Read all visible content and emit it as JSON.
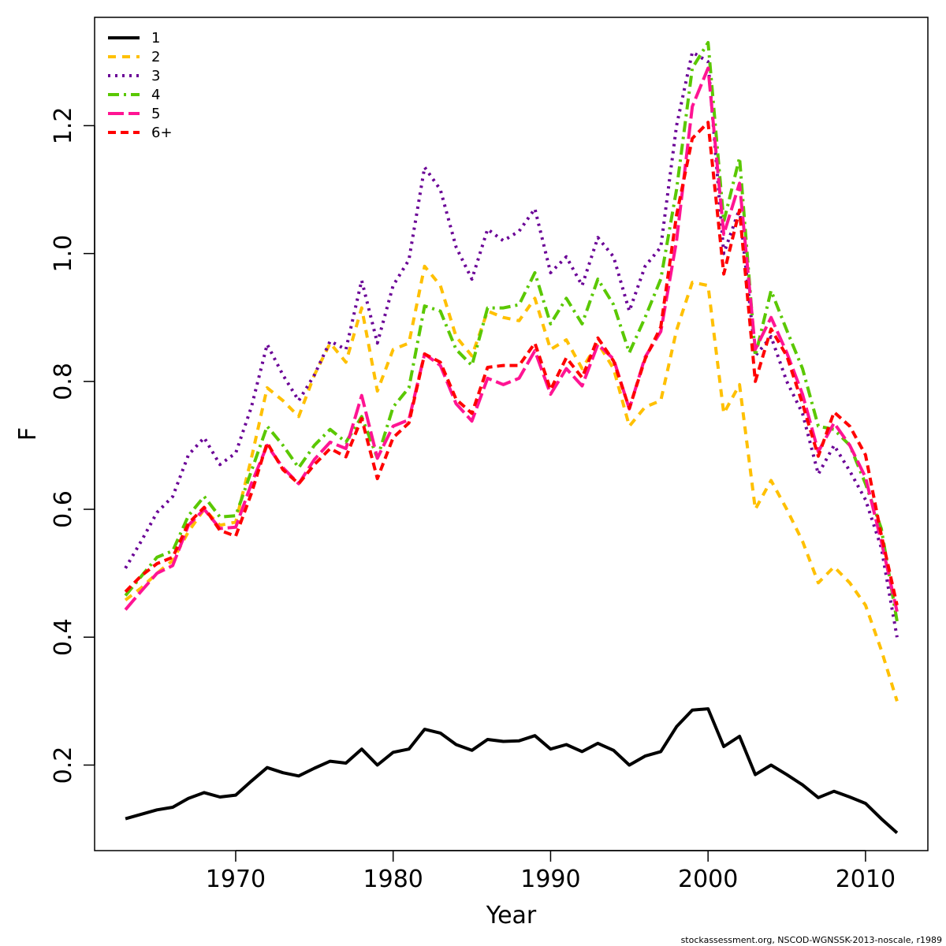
{
  "chart_data": {
    "type": "line",
    "xlabel": "Year",
    "ylabel": "F",
    "xlim": [
      1961.04,
      2013.96
    ],
    "ylim": [
      0.0662,
      1.3694
    ],
    "x_ticks": [
      1970,
      1980,
      1990,
      2000,
      2010
    ],
    "y_ticks": [
      0.2,
      0.4,
      0.6,
      0.8,
      1.0,
      1.2
    ],
    "x_tick_labels": [
      "1970",
      "1980",
      "1990",
      "2000",
      "2010"
    ],
    "y_tick_labels": [
      "0.2",
      "0.4",
      "0.6",
      "0.8",
      "1.0",
      "1.2"
    ],
    "grid": false,
    "legend_position": "top-left",
    "x": [
      1963,
      1964,
      1965,
      1966,
      1967,
      1968,
      1969,
      1970,
      1971,
      1972,
      1973,
      1974,
      1975,
      1976,
      1977,
      1978,
      1979,
      1980,
      1981,
      1982,
      1983,
      1984,
      1985,
      1986,
      1987,
      1988,
      1989,
      1990,
      1991,
      1992,
      1993,
      1994,
      1995,
      1996,
      1997,
      1998,
      1999,
      2000,
      2001,
      2002,
      2003,
      2004,
      2005,
      2006,
      2007,
      2008,
      2009,
      2010,
      2011,
      2012
    ],
    "series": [
      {
        "name": "1",
        "color": "#000000",
        "dash": "solid",
        "values": [
          0.116,
          0.123,
          0.13,
          0.134,
          0.148,
          0.157,
          0.15,
          0.153,
          0.175,
          0.196,
          0.188,
          0.183,
          0.195,
          0.206,
          0.203,
          0.225,
          0.2,
          0.22,
          0.225,
          0.256,
          0.25,
          0.232,
          0.223,
          0.24,
          0.237,
          0.238,
          0.246,
          0.225,
          0.232,
          0.221,
          0.234,
          0.223,
          0.2,
          0.214,
          0.221,
          0.26,
          0.286,
          0.288,
          0.229,
          0.245,
          0.185,
          0.2,
          0.185,
          0.169,
          0.149,
          0.159,
          0.15,
          0.14,
          0.116,
          0.094
        ]
      },
      {
        "name": "2",
        "color": "#FFC000",
        "dash": "10,8",
        "values": [
          0.458,
          0.477,
          0.5,
          0.52,
          0.565,
          0.6,
          0.575,
          0.58,
          0.68,
          0.79,
          0.77,
          0.745,
          0.81,
          0.86,
          0.83,
          0.915,
          0.785,
          0.85,
          0.86,
          0.98,
          0.95,
          0.87,
          0.84,
          0.91,
          0.9,
          0.895,
          0.93,
          0.85,
          0.865,
          0.82,
          0.86,
          0.82,
          0.73,
          0.76,
          0.77,
          0.88,
          0.955,
          0.95,
          0.75,
          0.795,
          0.6,
          0.645,
          0.6,
          0.55,
          0.485,
          0.51,
          0.485,
          0.45,
          0.38,
          0.3
        ]
      },
      {
        "name": "3",
        "color": "#6A0096",
        "dash": "3,6",
        "values": [
          0.508,
          0.55,
          0.595,
          0.62,
          0.685,
          0.712,
          0.67,
          0.688,
          0.76,
          0.858,
          0.81,
          0.77,
          0.81,
          0.863,
          0.85,
          0.958,
          0.86,
          0.95,
          0.99,
          1.135,
          1.1,
          1.01,
          0.96,
          1.038,
          1.02,
          1.035,
          1.07,
          0.97,
          0.995,
          0.95,
          1.025,
          0.995,
          0.91,
          0.98,
          1.01,
          1.2,
          1.315,
          1.3,
          1.0,
          1.07,
          0.84,
          0.87,
          0.8,
          0.75,
          0.655,
          0.7,
          0.66,
          0.615,
          0.54,
          0.4
        ]
      },
      {
        "name": "4",
        "color": "#5AC800",
        "dash": "14,6,3,6",
        "values": [
          0.465,
          0.495,
          0.525,
          0.535,
          0.59,
          0.62,
          0.588,
          0.59,
          0.66,
          0.73,
          0.7,
          0.665,
          0.7,
          0.725,
          0.705,
          0.745,
          0.68,
          0.76,
          0.79,
          0.918,
          0.91,
          0.85,
          0.825,
          0.915,
          0.915,
          0.92,
          0.97,
          0.89,
          0.93,
          0.89,
          0.96,
          0.92,
          0.845,
          0.9,
          0.96,
          1.1,
          1.29,
          1.33,
          1.05,
          1.15,
          0.84,
          0.942,
          0.88,
          0.82,
          0.73,
          0.725,
          0.7,
          0.64,
          0.57,
          0.425
        ]
      },
      {
        "name": "5",
        "color": "#FF1493",
        "dash": "20,6",
        "values": [
          0.443,
          0.472,
          0.5,
          0.512,
          0.575,
          0.6,
          0.57,
          0.572,
          0.64,
          0.7,
          0.665,
          0.64,
          0.678,
          0.705,
          0.695,
          0.778,
          0.68,
          0.73,
          0.74,
          0.843,
          0.825,
          0.765,
          0.738,
          0.805,
          0.795,
          0.805,
          0.848,
          0.78,
          0.82,
          0.793,
          0.858,
          0.835,
          0.757,
          0.838,
          0.878,
          1.02,
          1.23,
          1.29,
          1.03,
          1.11,
          0.85,
          0.9,
          0.845,
          0.78,
          0.69,
          0.735,
          0.7,
          0.65,
          0.55,
          0.44
        ]
      },
      {
        "name": "6+",
        "color": "#FF0000",
        "dash": "10,6",
        "values": [
          0.471,
          0.496,
          0.515,
          0.525,
          0.578,
          0.603,
          0.567,
          0.558,
          0.625,
          0.704,
          0.662,
          0.64,
          0.67,
          0.695,
          0.682,
          0.742,
          0.648,
          0.712,
          0.735,
          0.843,
          0.83,
          0.772,
          0.75,
          0.822,
          0.825,
          0.825,
          0.86,
          0.787,
          0.837,
          0.806,
          0.868,
          0.832,
          0.758,
          0.835,
          0.885,
          1.06,
          1.18,
          1.205,
          0.968,
          1.068,
          0.8,
          0.882,
          0.84,
          0.765,
          0.683,
          0.752,
          0.73,
          0.685,
          0.56,
          0.45
        ]
      }
    ]
  },
  "footer": {
    "note": "stockassessment.org, NSCOD-WGNSSK-2013-noscale, r1989"
  }
}
